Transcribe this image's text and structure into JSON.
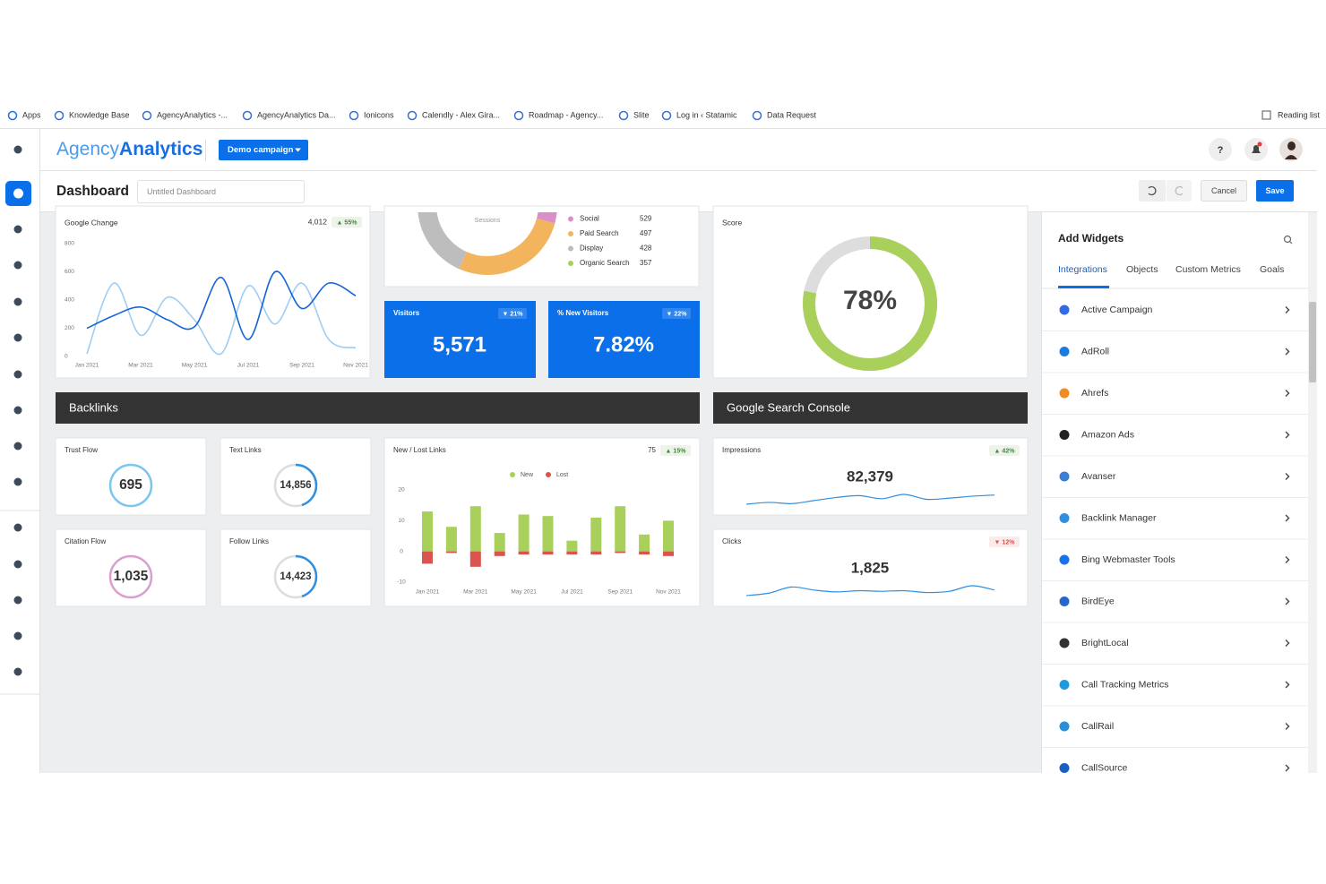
{
  "bookmarks": [
    "Apps",
    "Knowledge Base",
    "AgencyAnalytics -...",
    "AgencyAnalytics Da...",
    "Ionicons",
    "Calendly - Alex Gira...",
    "Roadmap - Agency...",
    "Slite",
    "Log in ‹ Statamic",
    "Data Request"
  ],
  "reading_list": "Reading list",
  "header": {
    "logo_light": "Agency",
    "logo_bold": "Analytics",
    "campaign": "Demo campaign",
    "help": "?"
  },
  "toolbar": {
    "title": "Dashboard",
    "name_placeholder": "Untitled Dashboard",
    "cancel": "Cancel",
    "save": "Save"
  },
  "google_change": {
    "title": "Google Change",
    "total": "4,012",
    "change": "▲ 55%",
    "ylim": [
      0,
      800
    ],
    "yticks": [
      0,
      200,
      400,
      600,
      800
    ],
    "categories": [
      "Jan 2021",
      null,
      "Mar 2021",
      null,
      "May 2021",
      null,
      "Jul 2021",
      null,
      "Sep 2021",
      null,
      "Nov 2021"
    ],
    "series": [
      {
        "color": "#1565d8",
        "values": [
          200,
          290,
          350,
          260,
          210,
          560,
          120,
          600,
          340,
          520,
          430
        ]
      },
      {
        "color": "#9fcdf2",
        "values": [
          20,
          520,
          150,
          420,
          260,
          20,
          500,
          230,
          520,
          120,
          60
        ]
      }
    ]
  },
  "sessions": {
    "label": "Sessions",
    "legend": [
      {
        "name": "Social",
        "value": 529,
        "color": "#d98fc9"
      },
      {
        "name": "Paid Search",
        "value": 497,
        "color": "#f3b45e"
      },
      {
        "name": "Display",
        "value": 428,
        "color": "#bdbdbd"
      },
      {
        "name": "Organic Search",
        "value": 357,
        "color": "#a8d05a"
      }
    ]
  },
  "visitors": {
    "title": "Visitors",
    "value": "5,571",
    "change": "▼ 21%"
  },
  "new_visitors": {
    "title": "% New Visitors",
    "value": "7.82%",
    "change": "▼ 22%"
  },
  "score": {
    "title": "Score",
    "value": 78,
    "label": "78%",
    "color": "#a8d05a"
  },
  "backlinks": {
    "title": "Backlinks",
    "metrics": [
      {
        "title": "Trust Flow",
        "value": "695",
        "color": "#7cc6ee"
      },
      {
        "title": "Text Links",
        "value": "14,856",
        "color": "#2f8fe0"
      },
      {
        "title": "Citation Flow",
        "value": "1,035",
        "color": "#d9a0cf"
      },
      {
        "title": "Follow Links",
        "value": "14,423",
        "color": "#2f8fe0"
      }
    ],
    "new_lost": {
      "title": "New / Lost Links",
      "total": "75",
      "change": "▲ 15%",
      "ylim": [
        -10,
        20
      ],
      "yticks": [
        -10,
        0,
        10,
        20
      ],
      "categories": [
        "Jan 2021",
        null,
        "Mar 2021",
        null,
        "May 2021",
        null,
        "Jul 2021",
        null,
        "Sep 2021",
        null,
        "Nov 2021"
      ],
      "series": [
        {
          "name": "New",
          "color": "#a8d05a",
          "values": [
            13,
            8,
            14.7,
            6,
            12,
            11.5,
            3.5,
            11,
            14.7,
            5.5,
            10
          ]
        },
        {
          "name": "Lost",
          "color": "#d9534f",
          "values": [
            -4,
            -0.5,
            -5,
            -1.5,
            -1,
            -1,
            -1,
            -1,
            -0.5,
            -1,
            -1.5
          ]
        }
      ]
    }
  },
  "gsc": {
    "title": "Google Search Console",
    "metrics": [
      {
        "title": "Impressions",
        "value": "82,379",
        "change": "▲ 42%",
        "trend": "up",
        "values": [
          2,
          2.3,
          2.1,
          2.6,
          3.1,
          3.4,
          2.9,
          3.6,
          2.8,
          3.0,
          3.3,
          3.5
        ]
      },
      {
        "title": "Clicks",
        "value": "1,825",
        "change": "▼ 12%",
        "trend": "down",
        "values": [
          1,
          1.4,
          2.4,
          1.9,
          1.6,
          1.8,
          1.7,
          1.8,
          1.5,
          1.7,
          2.6,
          1.9
        ]
      }
    ]
  },
  "add_widgets": {
    "title": "Add Widgets",
    "tabs": [
      "Integrations",
      "Objects",
      "Custom Metrics",
      "Goals"
    ],
    "items": [
      {
        "name": "Active Campaign",
        "color": "#356ae6"
      },
      {
        "name": "AdRoll",
        "color": "#1b7be0"
      },
      {
        "name": "Ahrefs",
        "color": "#f08a24"
      },
      {
        "name": "Amazon Ads",
        "color": "#222222"
      },
      {
        "name": "Avanser",
        "color": "#3a7fd5"
      },
      {
        "name": "Backlink Manager",
        "color": "#2f8fe0"
      },
      {
        "name": "Bing Webmaster Tools",
        "color": "#1a73e8"
      },
      {
        "name": "BirdEye",
        "color": "#2466c9"
      },
      {
        "name": "BrightLocal",
        "color": "#333333"
      },
      {
        "name": "Call Tracking Metrics",
        "color": "#1e9be0"
      },
      {
        "name": "CallRail",
        "color": "#2a8fd8"
      },
      {
        "name": "CallSource",
        "color": "#1a5fc4"
      }
    ]
  }
}
